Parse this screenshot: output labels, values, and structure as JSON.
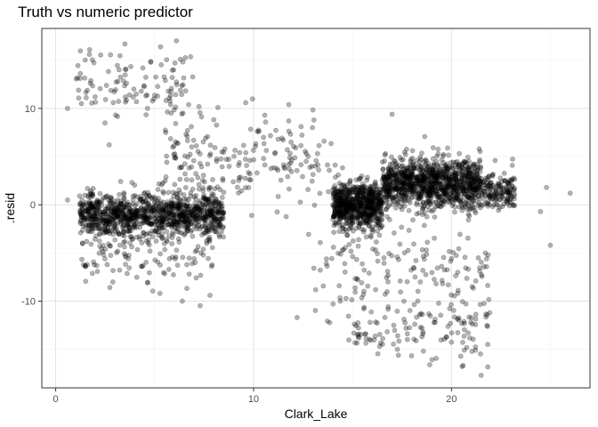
{
  "chart_data": {
    "type": "scatter",
    "title": "Truth vs numeric predictor",
    "xlabel": "Clark_Lake",
    "ylabel": ".resid",
    "xlim": [
      -0.7,
      27.0
    ],
    "ylim": [
      -19.0,
      18.3
    ],
    "x_ticks": [
      0,
      10,
      20
    ],
    "y_ticks": [
      -10,
      0,
      10
    ],
    "grid": true,
    "legend": "none",
    "point_color": "#000000",
    "point_opacity": 0.3,
    "series": [
      {
        "clusters": [
          {
            "x_range": [
              1.2,
              8.5
            ],
            "y_mean": -1.0,
            "y_sd": 1.1,
            "n": 1100
          },
          {
            "x_range": [
              14.0,
              16.5
            ],
            "y_mean": 0.0,
            "y_sd": 1.2,
            "n": 700
          },
          {
            "x_range": [
              16.5,
              21.5
            ],
            "y_mean": 2.2,
            "y_sd": 1.3,
            "n": 1100
          },
          {
            "x_range": [
              21.5,
              23.2
            ],
            "y_mean": 1.5,
            "y_sd": 1.0,
            "n": 160
          },
          {
            "x_range": [
              1.0,
              7.0
            ],
            "y_mean": 12.0,
            "y_sd": 1.8,
            "n": 110
          },
          {
            "x_range": [
              5.5,
              14.0
            ],
            "y_mean": 4.5,
            "y_sd": 2.5,
            "n": 200
          },
          {
            "x_range": [
              14.5,
              22.0
            ],
            "y_mean": -13.0,
            "y_sd": 1.5,
            "n": 120
          },
          {
            "x_range": [
              13.0,
              22.0
            ],
            "y_mean": -7.0,
            "y_sd": 2.5,
            "n": 150
          },
          {
            "x_range": [
              1.2,
              8.0
            ],
            "y_mean": -5.5,
            "y_sd": 1.6,
            "n": 110
          }
        ],
        "points": [
          [
            0.6,
            10.0
          ],
          [
            0.6,
            0.5
          ],
          [
            1.5,
            -6.3
          ],
          [
            1.6,
            -6.2
          ],
          [
            2.6,
            -6.2
          ],
          [
            1.7,
            15.6
          ],
          [
            3.5,
            16.7
          ],
          [
            5.3,
            16.4
          ],
          [
            6.3,
            15.1
          ],
          [
            8.2,
            10.1
          ],
          [
            9.6,
            10.6
          ],
          [
            12.2,
            -11.7
          ],
          [
            17.0,
            9.4
          ],
          [
            18.9,
            -16.6
          ],
          [
            21.5,
            -17.7
          ],
          [
            24.5,
            -0.7
          ],
          [
            24.8,
            1.8
          ],
          [
            25.0,
            -4.2
          ],
          [
            26.0,
            1.2
          ],
          [
            6.4,
            -10.0
          ],
          [
            7.8,
            -9.4
          ],
          [
            1.3,
            10.5
          ],
          [
            4.8,
            14.8
          ],
          [
            8.4,
            5.5
          ],
          [
            10.5,
            7.0
          ]
        ]
      }
    ]
  }
}
